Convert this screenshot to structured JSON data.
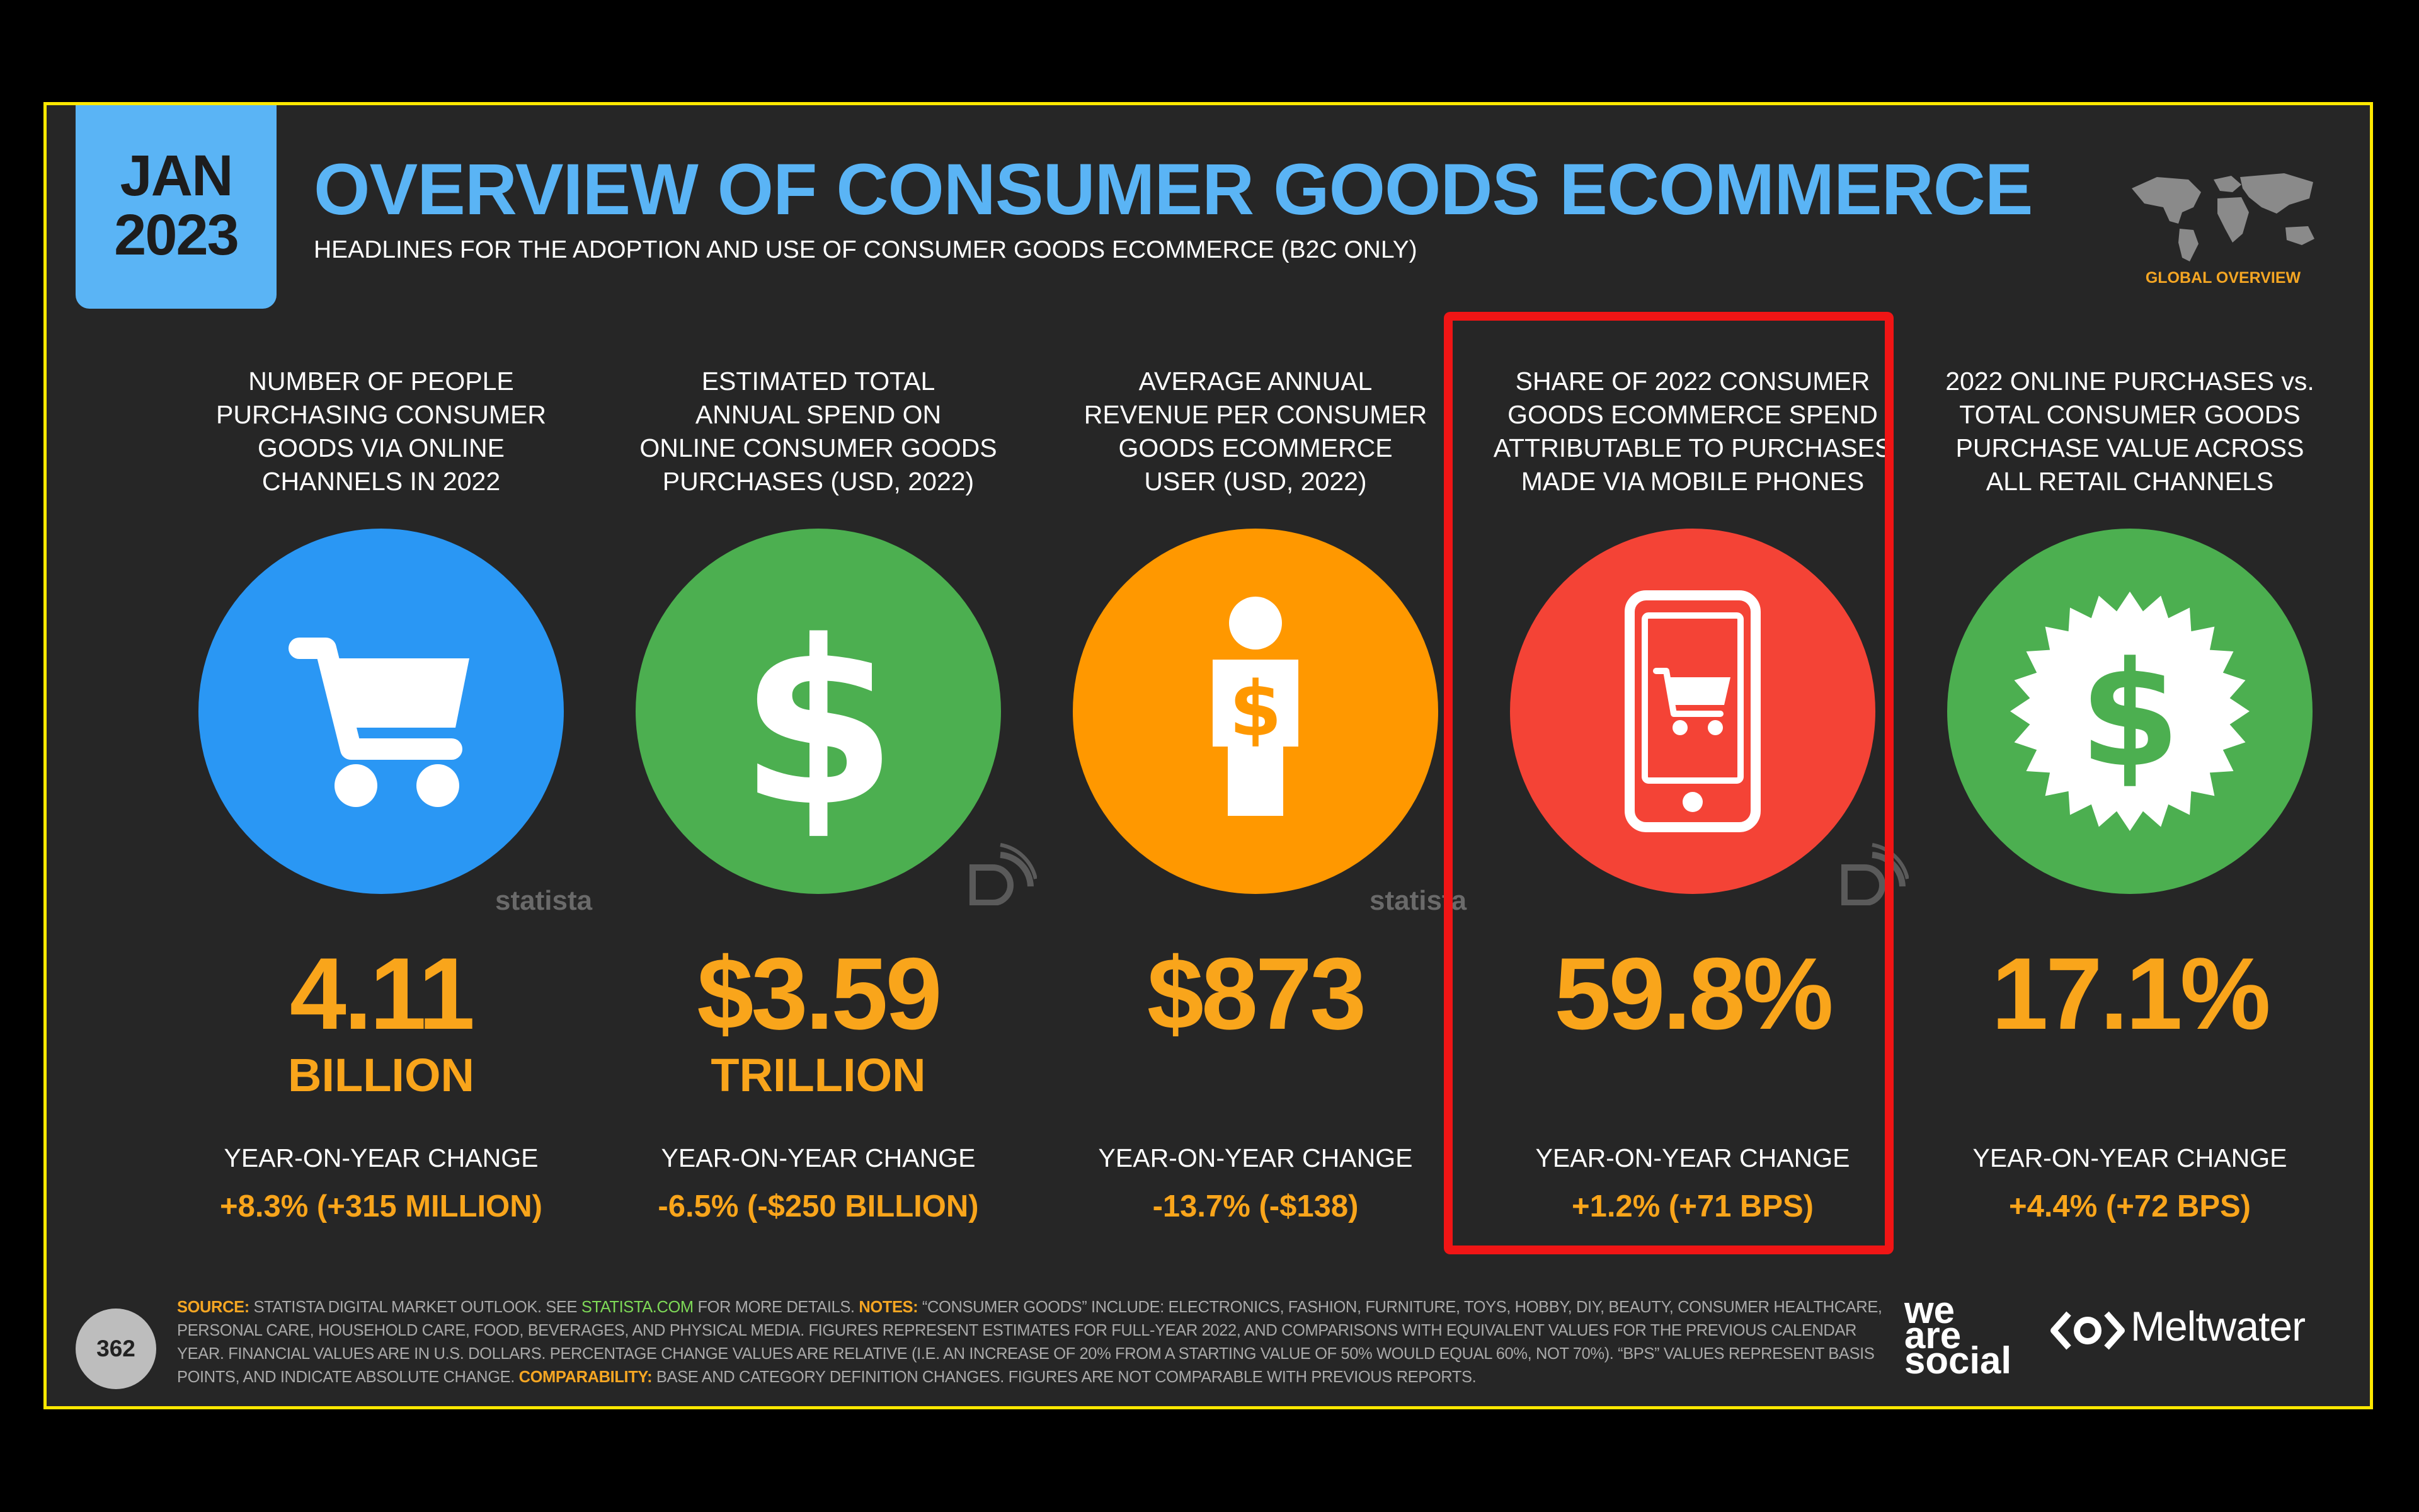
{
  "header": {
    "month": "JAN",
    "year": "2023",
    "title": "OVERVIEW OF CONSUMER GOODS ECOMMERCE",
    "subtitle": "HEADLINES FOR THE ADOPTION AND USE OF CONSUMER GOODS ECOMMERCE (B2C ONLY)",
    "global_label": "GLOBAL OVERVIEW"
  },
  "colors": {
    "accent_blue": "#5ab4f5",
    "accent_orange": "#f9a51b",
    "highlight_red": "#f01515",
    "circle_blue": "#2a97f4",
    "circle_green": "#4caf50",
    "circle_orange": "#ff9800",
    "circle_red": "#f44336"
  },
  "metrics": [
    {
      "heading": [
        "NUMBER OF PEOPLE",
        "PURCHASING CONSUMER",
        "GOODS VIA ONLINE",
        "CHANNELS IN 2022"
      ],
      "icon": "shopping-cart-icon",
      "value": "4.11",
      "unit": "BILLION",
      "yoy_label": "YEAR-ON-YEAR CHANGE",
      "yoy_value": "+8.3% (+315 MILLION)"
    },
    {
      "heading": [
        "ESTIMATED TOTAL",
        "ANNUAL SPEND ON",
        "ONLINE CONSUMER GOODS",
        "PURCHASES (USD, 2022)"
      ],
      "icon": "dollar-sign-icon",
      "value": "$3.59",
      "unit": "TRILLION",
      "yoy_label": "YEAR-ON-YEAR CHANGE",
      "yoy_value": "-6.5% (-$250 BILLION)"
    },
    {
      "heading": [
        "AVERAGE ANNUAL",
        "REVENUE PER CONSUMER",
        "GOODS ECOMMERCE",
        "USER (USD, 2022)"
      ],
      "icon": "person-dollar-icon",
      "value": "$873",
      "unit": "",
      "yoy_label": "YEAR-ON-YEAR CHANGE",
      "yoy_value": "-13.7% (-$138)"
    },
    {
      "heading": [
        "SHARE OF 2022 CONSUMER",
        "GOODS ECOMMERCE SPEND",
        "ATTRIBUTABLE TO PURCHASES",
        "MADE VIA MOBILE PHONES"
      ],
      "icon": "mobile-cart-icon",
      "value": "59.8%",
      "unit": "",
      "yoy_label": "YEAR-ON-YEAR CHANGE",
      "yoy_value": "+1.2% (+71 BPS)"
    },
    {
      "heading": [
        "2022 ONLINE PURCHASES vs.",
        "TOTAL CONSUMER GOODS",
        "PURCHASE VALUE ACROSS",
        "ALL RETAIL CHANNELS"
      ],
      "icon": "dollar-badge-icon",
      "value": "17.1%",
      "unit": "",
      "yoy_label": "YEAR-ON-YEAR CHANGE",
      "yoy_value": "+4.4% (+72 BPS)"
    }
  ],
  "watermarks": {
    "statista": "statista"
  },
  "footer": {
    "page_number": "362",
    "source_label": "SOURCE:",
    "source_text_1": " STATISTA DIGITAL MARKET OUTLOOK. SEE ",
    "source_link": "STATISTA.COM",
    "source_text_2": " FOR MORE DETAILS. ",
    "notes_label": "NOTES:",
    "notes_text": " “CONSUMER GOODS” INCLUDE: ELECTRONICS, FASHION, FURNITURE, TOYS, HOBBY, DIY, BEAUTY, CONSUMER HEALTHCARE, PERSONAL CARE, HOUSEHOLD CARE, FOOD, BEVERAGES, AND PHYSICAL MEDIA. FIGURES REPRESENT ESTIMATES FOR FULL-YEAR 2022, AND COMPARISONS WITH EQUIVALENT VALUES FOR THE PREVIOUS CALENDAR YEAR. FINANCIAL VALUES ARE IN U.S. DOLLARS. PERCENTAGE CHANGE VALUES ARE RELATIVE (I.E. AN INCREASE OF 20% FROM A STARTING VALUE OF 50% WOULD EQUAL 60%, NOT 70%). “BPS” VALUES REPRESENT BASIS POINTS, AND INDICATE ABSOLUTE CHANGE. ",
    "comparability_label": "COMPARABILITY:",
    "comparability_text": " BASE AND CATEGORY DEFINITION CHANGES. FIGURES ARE NOT COMPARABLE WITH PREVIOUS REPORTS.",
    "brand_1": [
      "we",
      "are",
      "social"
    ],
    "brand_2": "Meltwater"
  }
}
